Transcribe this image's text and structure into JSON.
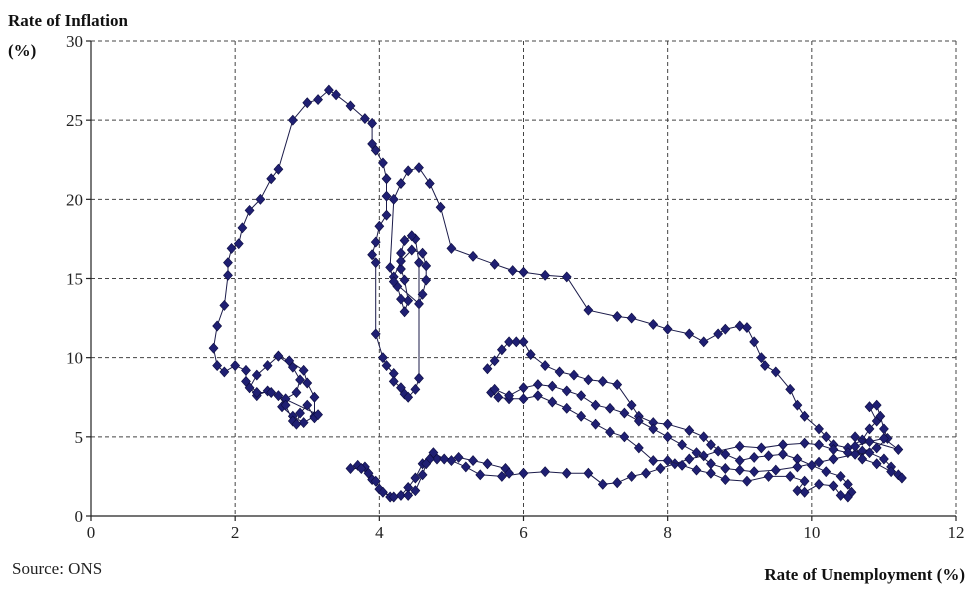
{
  "chart_data": {
    "type": "line",
    "ylabel_line1": "Rate of Inflation",
    "ylabel_line2": "(%)",
    "xlabel": "Rate of Unemployment (%)",
    "source": "Source: ONS",
    "xlim": [
      0,
      12
    ],
    "ylim": [
      0,
      30
    ],
    "x_ticks": [
      0,
      2,
      4,
      6,
      8,
      10,
      12
    ],
    "y_ticks": [
      0,
      5,
      10,
      15,
      20,
      25,
      30
    ],
    "grid": true,
    "marker": "diamond",
    "line_color": "#1b1b4a",
    "marker_color": "#1f1f72",
    "series": [
      {
        "points": [
          [
            2.6,
            10.1
          ],
          [
            2.8,
            9.4
          ],
          [
            2.9,
            8.6
          ],
          [
            2.85,
            7.8
          ],
          [
            2.7,
            7.4
          ],
          [
            2.65,
            6.9
          ],
          [
            2.8,
            6.3
          ],
          [
            2.95,
            5.9
          ],
          [
            3.1,
            6.3
          ],
          [
            3.1,
            7.5
          ],
          [
            3.0,
            8.4
          ],
          [
            2.95,
            9.2
          ],
          [
            2.75,
            9.8
          ],
          [
            2.6,
            10.1
          ],
          [
            2.45,
            9.5
          ],
          [
            2.3,
            8.9
          ],
          [
            2.2,
            8.1
          ],
          [
            2.3,
            7.6
          ],
          [
            2.45,
            7.9
          ],
          [
            2.6,
            7.6
          ],
          [
            2.7,
            7.0
          ],
          [
            2.8,
            6.0
          ],
          [
            2.85,
            5.8
          ],
          [
            2.9,
            6.5
          ],
          [
            3.0,
            7.0
          ],
          [
            3.1,
            6.2
          ],
          [
            3.15,
            6.4
          ],
          [
            2.5,
            7.8
          ],
          [
            2.3,
            7.8
          ],
          [
            2.15,
            8.5
          ],
          [
            2.15,
            9.2
          ],
          [
            2.0,
            9.5
          ],
          [
            1.85,
            9.1
          ],
          [
            1.75,
            9.5
          ],
          [
            1.7,
            10.6
          ],
          [
            1.75,
            12.0
          ],
          [
            1.85,
            13.3
          ],
          [
            1.9,
            15.2
          ],
          [
            1.9,
            16.0
          ],
          [
            1.95,
            16.9
          ],
          [
            2.05,
            17.2
          ],
          [
            2.1,
            18.2
          ],
          [
            2.2,
            19.3
          ],
          [
            2.35,
            20.0
          ],
          [
            2.5,
            21.3
          ],
          [
            2.6,
            21.9
          ],
          [
            2.8,
            25.0
          ],
          [
            3.0,
            26.1
          ],
          [
            3.15,
            26.3
          ],
          [
            3.3,
            26.9
          ],
          [
            3.4,
            26.6
          ],
          [
            3.6,
            25.9
          ],
          [
            3.8,
            25.1
          ],
          [
            3.9,
            24.8
          ],
          [
            3.9,
            23.5
          ],
          [
            3.95,
            23.1
          ],
          [
            4.05,
            22.3
          ],
          [
            4.1,
            21.3
          ],
          [
            4.1,
            20.2
          ],
          [
            4.1,
            19.0
          ],
          [
            4.0,
            18.3
          ],
          [
            3.95,
            17.3
          ],
          [
            3.9,
            16.5
          ],
          [
            3.95,
            16.0
          ],
          [
            3.95,
            11.5
          ],
          [
            4.05,
            10.0
          ],
          [
            4.1,
            9.5
          ],
          [
            4.2,
            9.0
          ],
          [
            4.2,
            8.5
          ],
          [
            4.3,
            8.1
          ],
          [
            4.35,
            7.7
          ],
          [
            4.4,
            7.5
          ],
          [
            4.5,
            8.0
          ],
          [
            4.55,
            8.7
          ],
          [
            4.55,
            16.0
          ],
          [
            4.5,
            17.5
          ],
          [
            4.45,
            17.7
          ],
          [
            4.35,
            17.4
          ],
          [
            4.3,
            16.6
          ],
          [
            4.3,
            15.6
          ],
          [
            4.35,
            14.9
          ],
          [
            4.4,
            13.6
          ],
          [
            4.35,
            12.9
          ],
          [
            4.3,
            13.7
          ],
          [
            4.25,
            14.5
          ],
          [
            4.2,
            15.1
          ],
          [
            4.3,
            16.1
          ],
          [
            4.45,
            16.8
          ],
          [
            4.6,
            16.6
          ],
          [
            4.65,
            15.8
          ],
          [
            4.65,
            14.9
          ],
          [
            4.6,
            14.0
          ],
          [
            4.55,
            13.4
          ],
          [
            4.2,
            14.8
          ],
          [
            4.15,
            15.7
          ],
          [
            4.2,
            20.0
          ],
          [
            4.3,
            21.0
          ],
          [
            4.4,
            21.8
          ],
          [
            4.55,
            22.0
          ],
          [
            4.7,
            21.0
          ],
          [
            4.85,
            19.5
          ],
          [
            5.0,
            16.9
          ],
          [
            5.3,
            16.4
          ],
          [
            5.6,
            15.9
          ],
          [
            5.85,
            15.5
          ],
          [
            6.0,
            15.4
          ],
          [
            6.3,
            15.2
          ],
          [
            6.6,
            15.1
          ],
          [
            6.9,
            13.0
          ],
          [
            7.3,
            12.6
          ],
          [
            7.5,
            12.5
          ],
          [
            7.8,
            12.1
          ],
          [
            8.0,
            11.8
          ],
          [
            8.3,
            11.5
          ],
          [
            8.5,
            11.0
          ],
          [
            8.7,
            11.5
          ],
          [
            8.8,
            11.8
          ],
          [
            9.0,
            12.0
          ],
          [
            9.1,
            11.9
          ],
          [
            9.2,
            11.0
          ],
          [
            9.3,
            10.0
          ],
          [
            9.35,
            9.5
          ],
          [
            9.5,
            9.1
          ],
          [
            9.7,
            8.0
          ],
          [
            9.8,
            7.0
          ],
          [
            9.9,
            6.3
          ],
          [
            10.1,
            5.5
          ],
          [
            10.2,
            5.0
          ],
          [
            10.3,
            4.5
          ],
          [
            10.5,
            4.3
          ],
          [
            10.7,
            4.8
          ],
          [
            10.8,
            5.5
          ],
          [
            10.9,
            6.0
          ],
          [
            10.8,
            6.9
          ],
          [
            10.9,
            7.0
          ],
          [
            10.95,
            6.3
          ],
          [
            11.0,
            5.5
          ],
          [
            11.05,
            4.9
          ],
          [
            10.9,
            4.3
          ],
          [
            10.7,
            4.1
          ],
          [
            10.5,
            4.0
          ],
          [
            10.3,
            4.2
          ],
          [
            10.1,
            4.5
          ],
          [
            9.9,
            4.6
          ],
          [
            9.6,
            4.5
          ],
          [
            9.3,
            4.3
          ],
          [
            9.0,
            4.4
          ],
          [
            8.7,
            4.1
          ],
          [
            8.5,
            3.8
          ],
          [
            8.3,
            3.6
          ],
          [
            8.1,
            3.3
          ],
          [
            7.9,
            3.0
          ],
          [
            7.7,
            2.7
          ],
          [
            7.5,
            2.5
          ],
          [
            7.3,
            2.1
          ],
          [
            7.1,
            2.0
          ],
          [
            6.9,
            2.7
          ],
          [
            6.6,
            2.7
          ],
          [
            6.3,
            2.8
          ],
          [
            6.0,
            2.7
          ],
          [
            5.7,
            2.5
          ],
          [
            5.4,
            2.6
          ],
          [
            5.2,
            3.1
          ],
          [
            5.0,
            3.5
          ],
          [
            4.8,
            3.6
          ],
          [
            4.7,
            3.6
          ],
          [
            4.6,
            3.3
          ],
          [
            4.5,
            2.4
          ],
          [
            4.4,
            1.8
          ],
          [
            4.3,
            1.3
          ],
          [
            4.15,
            1.2
          ],
          [
            4.0,
            1.7
          ],
          [
            3.9,
            2.3
          ],
          [
            3.8,
            3.1
          ],
          [
            3.7,
            3.2
          ],
          [
            3.6,
            3.0
          ],
          [
            3.75,
            3.0
          ],
          [
            3.85,
            2.7
          ],
          [
            3.95,
            2.2
          ],
          [
            4.05,
            1.5
          ],
          [
            4.2,
            1.2
          ],
          [
            4.4,
            1.3
          ],
          [
            4.5,
            1.6
          ],
          [
            4.6,
            2.6
          ],
          [
            4.65,
            3.3
          ],
          [
            4.75,
            4.0
          ],
          [
            4.9,
            3.6
          ],
          [
            5.1,
            3.7
          ],
          [
            5.3,
            3.5
          ],
          [
            5.5,
            3.3
          ],
          [
            5.75,
            3.0
          ],
          [
            5.8,
            2.7
          ]
        ]
      },
      {
        "points": [
          [
            5.5,
            9.3
          ],
          [
            5.6,
            9.8
          ],
          [
            5.7,
            10.5
          ],
          [
            5.8,
            11.0
          ],
          [
            5.9,
            11.0
          ],
          [
            6.0,
            11.0
          ],
          [
            6.1,
            10.2
          ],
          [
            6.3,
            9.5
          ],
          [
            6.5,
            9.1
          ],
          [
            6.7,
            8.9
          ],
          [
            6.9,
            8.6
          ],
          [
            7.1,
            8.5
          ],
          [
            7.3,
            8.3
          ],
          [
            7.5,
            7.0
          ],
          [
            7.6,
            6.3
          ],
          [
            7.8,
            5.9
          ],
          [
            8.0,
            5.8
          ],
          [
            8.3,
            5.4
          ],
          [
            8.5,
            5.0
          ],
          [
            8.6,
            4.5
          ],
          [
            8.8,
            3.9
          ],
          [
            9.0,
            3.5
          ],
          [
            9.2,
            3.7
          ],
          [
            9.4,
            3.8
          ],
          [
            9.6,
            3.9
          ],
          [
            9.8,
            3.6
          ],
          [
            10.0,
            3.2
          ],
          [
            10.2,
            2.8
          ],
          [
            10.4,
            2.5
          ],
          [
            10.5,
            2.0
          ],
          [
            10.55,
            1.5
          ],
          [
            10.5,
            1.2
          ],
          [
            10.4,
            1.3
          ],
          [
            10.3,
            1.9
          ],
          [
            10.1,
            2.0
          ],
          [
            9.9,
            1.5
          ],
          [
            9.8,
            1.6
          ],
          [
            9.9,
            2.2
          ],
          [
            9.7,
            2.5
          ],
          [
            9.4,
            2.5
          ],
          [
            9.1,
            2.2
          ],
          [
            8.8,
            2.3
          ],
          [
            8.6,
            2.7
          ],
          [
            8.4,
            2.9
          ],
          [
            8.2,
            3.2
          ],
          [
            8.0,
            3.5
          ],
          [
            7.8,
            3.5
          ],
          [
            7.6,
            4.3
          ],
          [
            7.4,
            5.0
          ],
          [
            7.2,
            5.3
          ],
          [
            7.0,
            5.8
          ],
          [
            6.8,
            6.3
          ],
          [
            6.6,
            6.8
          ],
          [
            6.4,
            7.2
          ],
          [
            6.2,
            7.6
          ],
          [
            6.0,
            7.4
          ],
          [
            5.8,
            7.4
          ],
          [
            5.65,
            7.5
          ],
          [
            5.55,
            7.8
          ],
          [
            5.6,
            8.0
          ],
          [
            5.8,
            7.6
          ],
          [
            6.0,
            8.1
          ],
          [
            6.2,
            8.3
          ],
          [
            6.4,
            8.2
          ],
          [
            6.6,
            7.9
          ],
          [
            6.8,
            7.6
          ],
          [
            7.0,
            7.0
          ],
          [
            7.2,
            6.8
          ],
          [
            7.4,
            6.5
          ],
          [
            7.6,
            6.0
          ],
          [
            7.8,
            5.5
          ],
          [
            8.0,
            5.0
          ],
          [
            8.2,
            4.5
          ],
          [
            8.4,
            4.0
          ],
          [
            8.6,
            3.3
          ],
          [
            8.8,
            3.0
          ],
          [
            9.0,
            2.9
          ],
          [
            9.2,
            2.8
          ],
          [
            9.5,
            2.9
          ],
          [
            9.8,
            3.1
          ],
          [
            10.1,
            3.4
          ],
          [
            10.3,
            3.6
          ],
          [
            10.6,
            3.9
          ],
          [
            10.8,
            4.0
          ],
          [
            11.0,
            3.6
          ],
          [
            11.1,
            3.1
          ],
          [
            11.2,
            2.6
          ],
          [
            11.25,
            2.4
          ],
          [
            11.1,
            2.8
          ],
          [
            10.9,
            3.3
          ],
          [
            10.7,
            3.6
          ],
          [
            10.6,
            4.4
          ],
          [
            10.8,
            4.7
          ],
          [
            11.0,
            4.9
          ],
          [
            11.2,
            4.2
          ],
          [
            10.6,
            5.0
          ]
        ]
      }
    ]
  }
}
